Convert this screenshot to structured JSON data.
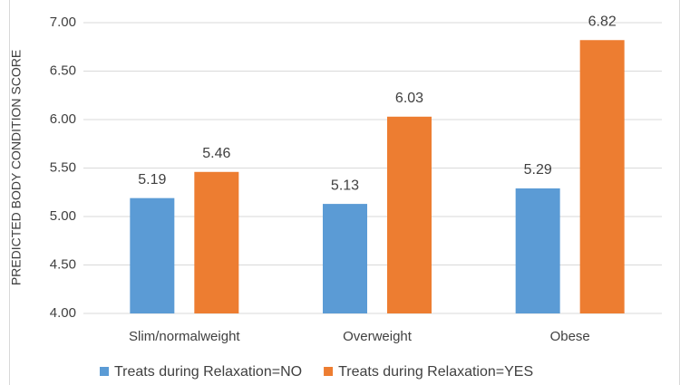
{
  "chart_data": {
    "type": "bar",
    "y_label": "PREDICTED BODY CONDITION SCORE",
    "categories": [
      "Slim/normalweight",
      "Overweight",
      "Obese"
    ],
    "series": [
      {
        "name": "Treats during Relaxation=NO",
        "color": "#5b9bd5",
        "values": [
          5.19,
          5.13,
          5.29
        ]
      },
      {
        "name": "Treats during Relaxation=YES",
        "color": "#ed7d31",
        "values": [
          5.46,
          6.03,
          6.82
        ]
      }
    ],
    "ylim": [
      4,
      7
    ],
    "yticks": [
      {
        "value": 4,
        "label": "4.00"
      },
      {
        "value": 4.5,
        "label": "4.50"
      },
      {
        "value": 5,
        "label": "5.00"
      },
      {
        "value": 5.5,
        "label": "5.50"
      },
      {
        "value": 6,
        "label": "6.00"
      },
      {
        "value": 6.5,
        "label": "6.50"
      },
      {
        "value": 7,
        "label": "7.00"
      }
    ],
    "grid": true,
    "legend": "bottom"
  }
}
